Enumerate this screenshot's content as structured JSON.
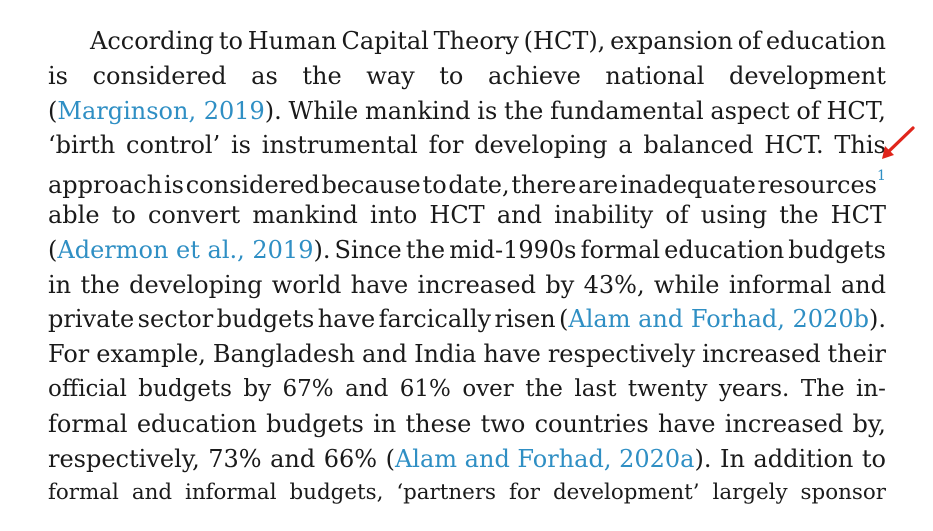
{
  "paragraph": {
    "lines": [
      [
        "According",
        "to",
        "Human",
        "Capital",
        "Theory",
        "(HCT),",
        "expansion",
        "of",
        "education"
      ],
      [
        "is",
        "considered",
        "as",
        "the",
        "way",
        "to",
        "achieve",
        "national",
        "development"
      ],
      [
        "(Marginson, 2019).",
        "While",
        "mankind",
        "is",
        "the",
        "fundamental",
        "aspect",
        "of",
        "HCT,"
      ],
      [
        "‘birth",
        "control’",
        "is",
        "instrumental",
        "for",
        "developing",
        "a",
        "balanced",
        "HCT.",
        "This"
      ],
      [
        "approach",
        "is",
        "considered",
        "because",
        "to",
        "date,",
        "there",
        "are",
        "inadequate",
        "resources"
      ],
      [
        "able",
        "to",
        "convert",
        "mankind",
        "into",
        "HCT",
        "and",
        "inability",
        "of",
        "using",
        "the",
        "HCT"
      ],
      [
        "(Adermon et al., 2019).",
        "Since",
        "the",
        "mid-1990s",
        "formal",
        "education",
        "budgets"
      ],
      [
        "in",
        "the",
        "developing",
        "world",
        "have",
        "increased",
        "by",
        "43%,",
        "while",
        "informal",
        "and"
      ],
      [
        "private",
        "sector",
        "budgets",
        "have",
        "farcically",
        "risen",
        "(Alam and Forhad, 2020b)."
      ],
      [
        "For",
        "example,",
        "Bangladesh",
        "and",
        "India",
        "have",
        "respectively",
        "increased",
        "their"
      ],
      [
        "official",
        "budgets",
        "by",
        "67%",
        "and",
        "61%",
        "over",
        "the",
        "last",
        "twenty",
        "years.",
        "The",
        "in-"
      ],
      [
        "formal",
        "education",
        "budgets",
        "in",
        "these",
        "two",
        "countries",
        "have",
        "increased",
        "by,"
      ],
      [
        "respectively,",
        "73%",
        "and",
        "66%",
        "(Alam and Forhad, 2020a).",
        "In",
        "addition",
        "to"
      ],
      [
        "formal",
        "and",
        "informal",
        "budgets,",
        "‘partners",
        "for",
        "development’",
        "largely",
        "sponsor"
      ]
    ],
    "citations": [
      {
        "line": 2,
        "index": 0,
        "text": "Marginson, 2019"
      },
      {
        "line": 6,
        "index": 0,
        "text": "Adermon et al., 2019"
      },
      {
        "line": 8,
        "index": 6,
        "text": "Alam and Forhad, 2020b"
      },
      {
        "line": 12,
        "index": 4,
        "text": "Alam and Forhad, 2020a"
      }
    ],
    "footnote_marker": "1",
    "link_color": "#2f8fc4",
    "text_color": "#1a1a1a"
  },
  "pointer": {
    "icon": "red-arrow-cursor-icon",
    "color": "#e0251b"
  }
}
